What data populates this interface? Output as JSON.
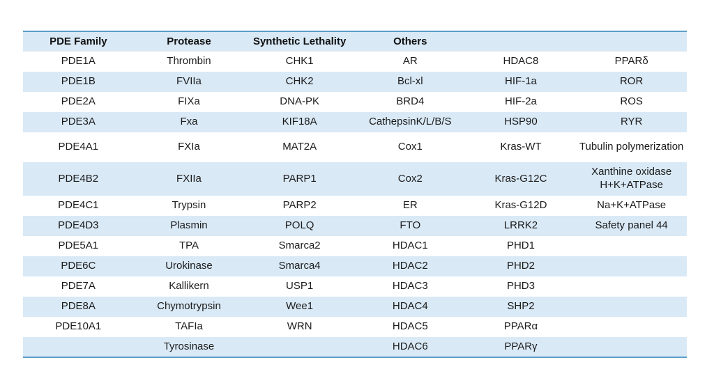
{
  "table": {
    "columns": [
      {
        "label": "PDE Family"
      },
      {
        "label": "Protease"
      },
      {
        "label": "Synthetic Lethality"
      },
      {
        "label": "Others"
      },
      {
        "label": ""
      },
      {
        "label": ""
      }
    ],
    "rows": [
      {
        "cells": [
          "PDE1A",
          "Thrombin",
          "CHK1",
          "AR",
          "HDAC8",
          "PPARδ"
        ]
      },
      {
        "cells": [
          "PDE1B",
          "FVIIa",
          "CHK2",
          "Bcl-xl",
          "HIF-1a",
          "ROR"
        ]
      },
      {
        "cells": [
          "PDE2A",
          "FIXa",
          "DNA-PK",
          "BRD4",
          "HIF-2a",
          "ROS"
        ]
      },
      {
        "cells": [
          "PDE3A",
          "Fxa",
          "KIF18A",
          "CathepsinK/L/B/S",
          "HSP90",
          "RYR"
        ]
      },
      {
        "cells": [
          "PDE4A1",
          "FXIa",
          "MAT2A",
          "Cox1",
          "Kras-WT",
          "Tubulin polymerization"
        ]
      },
      {
        "cells": [
          "PDE4B2",
          "FXIIa",
          "PARP1",
          "Cox2",
          "Kras-G12C",
          "Xanthine oxidase\nH+K+ATPase"
        ]
      },
      {
        "cells": [
          "PDE4C1",
          "Trypsin",
          "PARP2",
          "ER",
          "Kras-G12D",
          "Na+K+ATPase"
        ]
      },
      {
        "cells": [
          "PDE4D3",
          "Plasmin",
          "POLQ",
          "FTO",
          "LRRK2",
          "Safety panel 44"
        ]
      },
      {
        "cells": [
          "PDE5A1",
          "TPA",
          "Smarca2",
          "HDAC1",
          "PHD1",
          ""
        ]
      },
      {
        "cells": [
          "PDE6C",
          "Urokinase",
          "Smarca4",
          "HDAC2",
          "PHD2",
          ""
        ]
      },
      {
        "cells": [
          "PDE7A",
          "Kallikern",
          "USP1",
          "HDAC3",
          "PHD3",
          ""
        ]
      },
      {
        "cells": [
          "PDE8A",
          "Chymotrypsin",
          "Wee1",
          "HDAC4",
          "SHP2",
          ""
        ]
      },
      {
        "cells": [
          "PDE10A1",
          "TAFIa",
          "WRN",
          "HDAC5",
          "PPARα",
          ""
        ]
      },
      {
        "cells": [
          "",
          "Tyrosinase",
          "",
          "HDAC6",
          "PPARγ",
          ""
        ]
      }
    ]
  },
  "colors": {
    "row_shade": "#D9E9F6",
    "table_border": "#5B9EC9",
    "text": "#1B1B1B"
  }
}
